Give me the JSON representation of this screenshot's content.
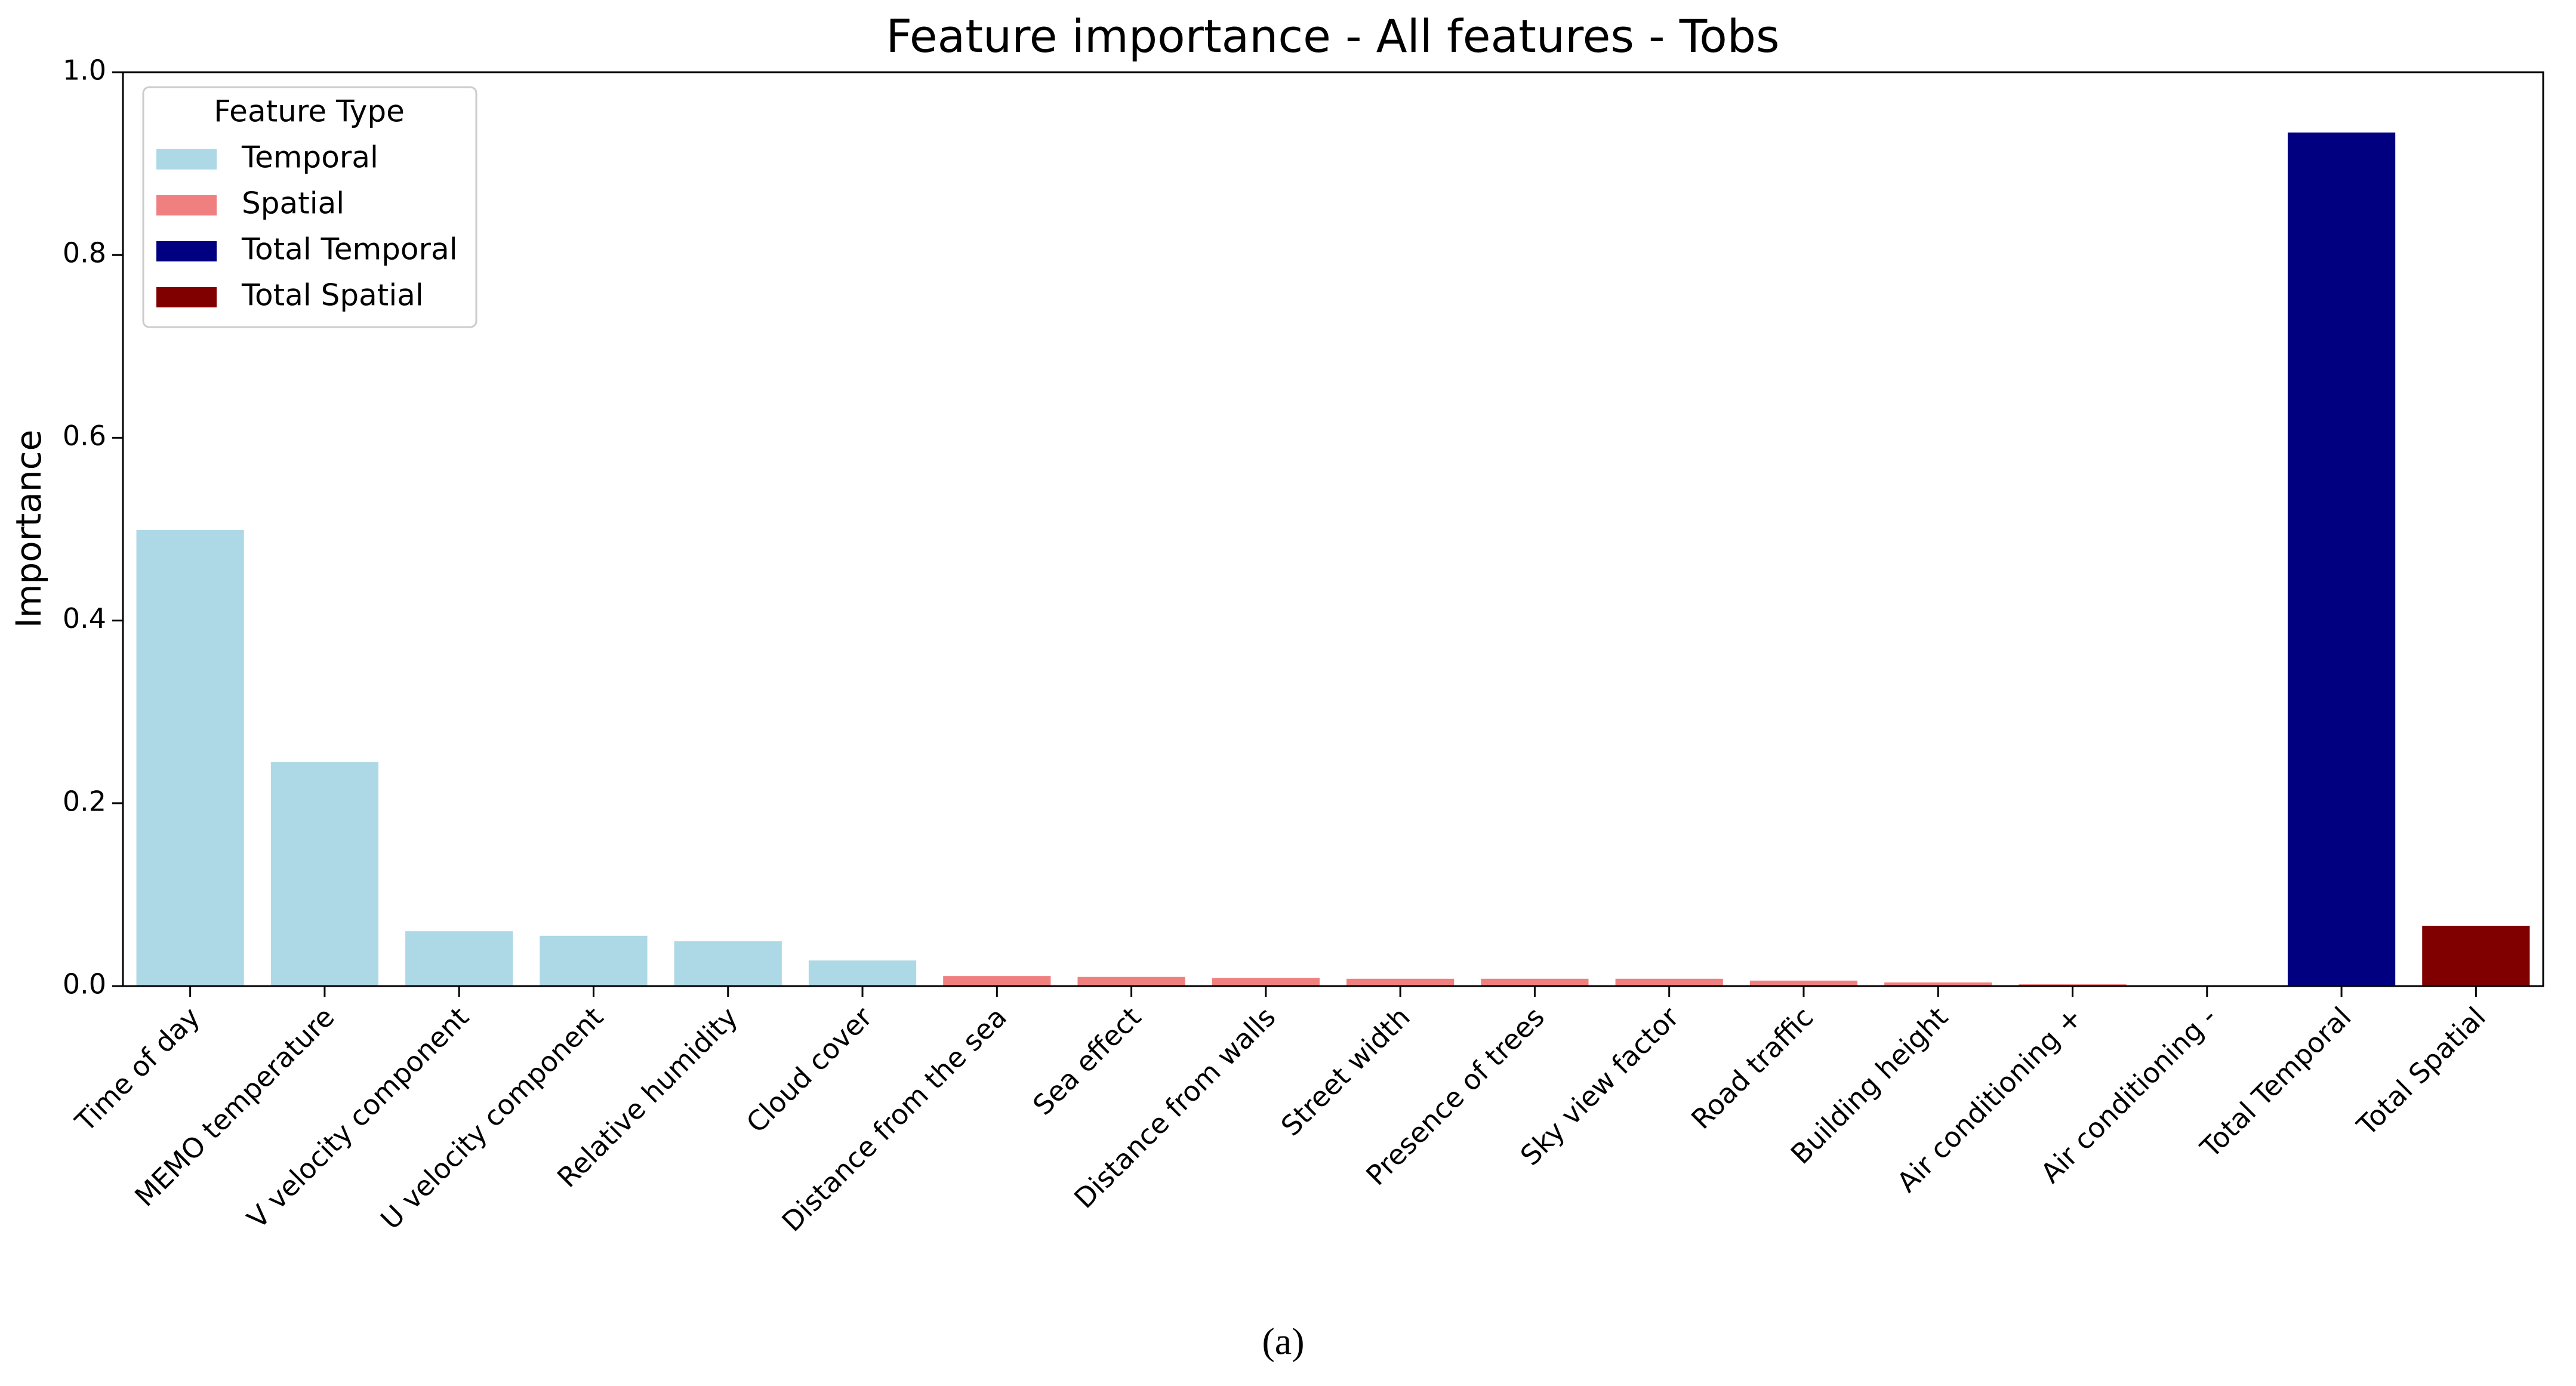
{
  "chart_data": {
    "type": "bar",
    "title": "Feature importance - All features - Tobs",
    "y_label": "Importance",
    "caption": "(a)",
    "categories": [
      "Time of day",
      "MEMO temperature",
      "V velocity component",
      "U velocity component",
      "Relative humidity",
      "Cloud cover",
      "Distance from the sea",
      "Sea effect",
      "Distance from walls",
      "Street width",
      "Presence of trees",
      "Sky view factor",
      "Road traffic",
      "Building height",
      "Air conditioning +",
      "Air conditioning -",
      "Total Temporal",
      "Total Spatial"
    ],
    "series": [
      {
        "name": "Temporal",
        "color": "#add8e6",
        "values": [
          0.499,
          0.245,
          0.06,
          0.055,
          0.049,
          0.028,
          null,
          null,
          null,
          null,
          null,
          null,
          null,
          null,
          null,
          null,
          null,
          null
        ]
      },
      {
        "name": "Spatial",
        "color": "#f08080",
        "values": [
          null,
          null,
          null,
          null,
          null,
          null,
          0.011,
          0.01,
          0.009,
          0.008,
          0.008,
          0.008,
          0.006,
          0.004,
          0.002,
          0,
          null,
          null
        ]
      },
      {
        "name": "Total Temporal",
        "color": "#000080",
        "values": [
          null,
          null,
          null,
          null,
          null,
          null,
          null,
          null,
          null,
          null,
          null,
          null,
          null,
          null,
          null,
          null,
          0.934,
          null
        ]
      },
      {
        "name": "Total Spatial",
        "color": "#800000",
        "values": [
          null,
          null,
          null,
          null,
          null,
          null,
          null,
          null,
          null,
          null,
          null,
          null,
          null,
          null,
          null,
          null,
          null,
          0.066
        ]
      }
    ],
    "legend": {
      "title": "Feature Type",
      "position": "upper left"
    },
    "ylim": [
      0,
      1
    ],
    "yticks": [
      {
        "value": 0,
        "label": "0.0"
      },
      0.2,
      0.4,
      0.6,
      0.8,
      {
        "value": 1,
        "label": "1.0"
      }
    ]
  }
}
